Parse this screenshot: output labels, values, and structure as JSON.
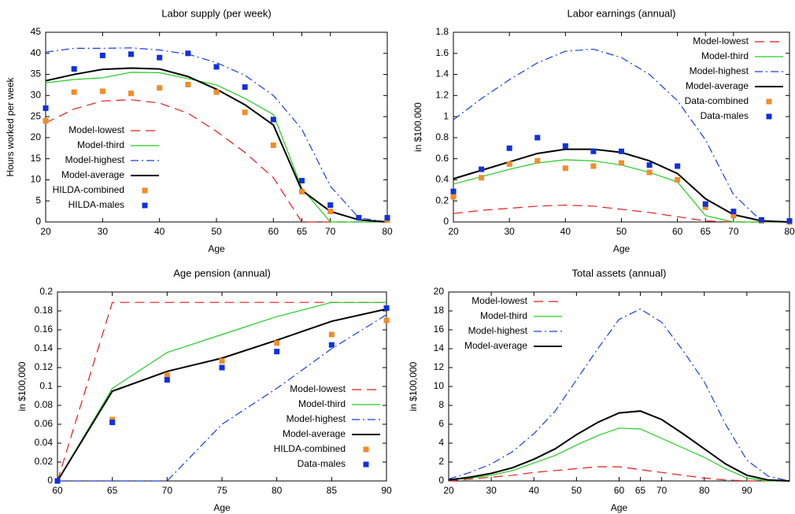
{
  "chart_data": [
    {
      "type": "line",
      "title": "Labor supply (per week)",
      "xlabel": "Age",
      "ylabel": "Hours worked per week",
      "x": [
        20,
        25,
        30,
        35,
        40,
        45,
        50,
        55,
        60,
        65,
        70,
        75,
        80
      ],
      "xlim": [
        20,
        80
      ],
      "xticks": [
        20,
        30,
        40,
        50,
        60,
        65,
        70,
        80
      ],
      "ylim": [
        0,
        45
      ],
      "yticks": [
        0,
        5,
        10,
        15,
        20,
        25,
        30,
        35,
        40,
        45
      ],
      "legend": "lower left",
      "series": [
        {
          "name": "Model-lowest",
          "color": "#e41a1c",
          "dash": "long",
          "kind": "line",
          "values": [
            23.5,
            26.8,
            28.7,
            29,
            28.2,
            25.8,
            21.5,
            16.5,
            10.5,
            0,
            0,
            0,
            0
          ]
        },
        {
          "name": "Model-third",
          "color": "#22cc22",
          "dash": "solid",
          "kind": "line",
          "values": [
            33,
            33.8,
            34.2,
            35.5,
            35.4,
            34,
            32.5,
            29.3,
            25.5,
            8,
            0,
            0,
            0
          ]
        },
        {
          "name": "Model-highest",
          "color": "#1a3ee0",
          "dash": "dot-dash",
          "kind": "line",
          "values": [
            40.3,
            41.2,
            41.2,
            41.3,
            40.8,
            39.8,
            37.8,
            34.8,
            30,
            22,
            8.5,
            1,
            0
          ]
        },
        {
          "name": "Model-average",
          "color": "#000000",
          "dash": "solid",
          "kind": "line",
          "bold": true,
          "values": [
            33.5,
            35,
            36.2,
            36.5,
            36.3,
            34.5,
            31.5,
            27.8,
            23,
            7.5,
            2.5,
            0.5,
            0
          ]
        },
        {
          "name": "HILDA-combined",
          "color": "#f28c28",
          "kind": "points",
          "values": [
            24,
            30.8,
            31,
            30.5,
            31.8,
            32.6,
            30.8,
            26,
            18.2,
            7.2,
            2.5,
            1,
            0.5
          ]
        },
        {
          "name": "HILDA-males",
          "color": "#1030e0",
          "kind": "points",
          "values": [
            27,
            36.3,
            39.5,
            39.8,
            39,
            40,
            36.8,
            32,
            24.3,
            9.8,
            4,
            1,
            1
          ]
        }
      ]
    },
    {
      "type": "line",
      "title": "Labor earnings (annual)",
      "xlabel": "Age",
      "ylabel": "in $100,000",
      "x": [
        20,
        25,
        30,
        35,
        40,
        45,
        50,
        55,
        60,
        65,
        70,
        75,
        80
      ],
      "xlim": [
        20,
        80
      ],
      "xticks": [
        20,
        30,
        40,
        50,
        60,
        65,
        70,
        80
      ],
      "ylim": [
        0,
        1.8
      ],
      "yticks": [
        0,
        0.2,
        0.4,
        0.6,
        0.8,
        1,
        1.2,
        1.4,
        1.6,
        1.8
      ],
      "legend": "upper right",
      "series": [
        {
          "name": "Model-lowest",
          "color": "#e41a1c",
          "dash": "long",
          "kind": "line",
          "values": [
            0.08,
            0.11,
            0.13,
            0.15,
            0.16,
            0.15,
            0.12,
            0.09,
            0.05,
            0.01,
            0,
            0,
            0
          ]
        },
        {
          "name": "Model-third",
          "color": "#22cc22",
          "dash": "solid",
          "kind": "line",
          "values": [
            0.36,
            0.43,
            0.5,
            0.56,
            0.59,
            0.58,
            0.54,
            0.47,
            0.38,
            0.06,
            0,
            0,
            0
          ]
        },
        {
          "name": "Model-highest",
          "color": "#1a3ee0",
          "dash": "dot-dash",
          "kind": "line",
          "values": [
            0.97,
            1.17,
            1.35,
            1.51,
            1.62,
            1.64,
            1.56,
            1.4,
            1.15,
            0.78,
            0.26,
            0.01,
            0
          ]
        },
        {
          "name": "Model-average",
          "color": "#000000",
          "dash": "solid",
          "kind": "line",
          "bold": true,
          "values": [
            0.41,
            0.49,
            0.57,
            0.65,
            0.69,
            0.69,
            0.66,
            0.58,
            0.46,
            0.22,
            0.07,
            0.01,
            0
          ]
        },
        {
          "name": "Data-combined",
          "color": "#f28c28",
          "kind": "points",
          "values": [
            0.24,
            0.42,
            0.55,
            0.58,
            0.51,
            0.53,
            0.56,
            0.47,
            0.4,
            0.14,
            0.06,
            0.01,
            0
          ]
        },
        {
          "name": "Data-males",
          "color": "#1030e0",
          "kind": "points",
          "values": [
            0.29,
            0.5,
            0.7,
            0.8,
            0.72,
            0.67,
            0.67,
            0.54,
            0.53,
            0.17,
            0.1,
            0.02,
            0.01
          ]
        }
      ]
    },
    {
      "type": "line",
      "title": "Age pension (annual)",
      "xlabel": "Age",
      "ylabel": "in $100,000",
      "x": [
        60,
        65,
        70,
        75,
        80,
        85,
        90
      ],
      "xlim": [
        60,
        90
      ],
      "xticks": [
        60,
        65,
        70,
        75,
        80,
        85,
        90
      ],
      "ylim": [
        0,
        0.2
      ],
      "yticks": [
        0,
        0.02,
        0.04,
        0.06,
        0.08,
        0.1,
        0.12,
        0.14,
        0.16,
        0.18,
        0.2
      ],
      "legend": "lower right",
      "series": [
        {
          "name": "Model-lowest",
          "color": "#e41a1c",
          "dash": "long",
          "kind": "line",
          "values": [
            0,
            0.189,
            0.189,
            0.189,
            0.189,
            0.189,
            0.189
          ]
        },
        {
          "name": "Model-third",
          "color": "#22cc22",
          "dash": "solid",
          "kind": "line",
          "values": [
            0,
            0.098,
            0.136,
            0.155,
            0.174,
            0.189,
            0.189
          ]
        },
        {
          "name": "Model-highest",
          "color": "#1a3ee0",
          "dash": "dot-dash",
          "kind": "line",
          "values": [
            0,
            0,
            0,
            0.06,
            0.098,
            0.14,
            0.176
          ]
        },
        {
          "name": "Model-average",
          "color": "#000000",
          "dash": "solid",
          "kind": "line",
          "bold": true,
          "values": [
            0,
            0.095,
            0.116,
            0.13,
            0.149,
            0.169,
            0.182
          ]
        },
        {
          "name": "HILDA-combined",
          "color": "#f28c28",
          "kind": "points",
          "values": [
            0,
            0.065,
            0.112,
            0.127,
            0.146,
            0.155,
            0.17
          ]
        },
        {
          "name": "Data-males",
          "color": "#1030e0",
          "kind": "points",
          "values": [
            0,
            0.062,
            0.107,
            0.12,
            0.137,
            0.144,
            0.183
          ]
        }
      ]
    },
    {
      "type": "line",
      "title": "Total assets (annual)",
      "xlabel": "Age",
      "ylabel": "in $100,000",
      "x": [
        20,
        25,
        30,
        35,
        40,
        45,
        50,
        55,
        60,
        65,
        70,
        75,
        80,
        85,
        90,
        95,
        100
      ],
      "xlim": [
        20,
        100
      ],
      "xticks": [
        20,
        30,
        40,
        50,
        60,
        65,
        70,
        80,
        90
      ],
      "ylim": [
        0,
        20
      ],
      "yticks": [
        0,
        2,
        4,
        6,
        8,
        10,
        12,
        14,
        16,
        18,
        20
      ],
      "legend": "upper left",
      "series": [
        {
          "name": "Model-lowest",
          "color": "#e41a1c",
          "dash": "long",
          "kind": "line",
          "values": [
            0,
            0.2,
            0.4,
            0.6,
            0.9,
            1.1,
            1.3,
            1.5,
            1.5,
            1.2,
            0.9,
            0.6,
            0.3,
            0.1,
            0,
            0,
            0
          ]
        },
        {
          "name": "Model-third",
          "color": "#22cc22",
          "dash": "solid",
          "kind": "line",
          "values": [
            0.1,
            0.3,
            0.6,
            1.1,
            1.9,
            2.7,
            3.8,
            4.8,
            5.6,
            5.5,
            4.5,
            3.5,
            2.5,
            1.3,
            0.3,
            0,
            0
          ]
        },
        {
          "name": "Model-highest",
          "color": "#1a3ee0",
          "dash": "dot-dash",
          "kind": "line",
          "values": [
            0.2,
            0.9,
            1.8,
            3.1,
            5,
            7.4,
            10.7,
            14,
            17.1,
            18.2,
            16.8,
            13.8,
            10.5,
            6,
            2.2,
            0.5,
            0
          ]
        },
        {
          "name": "Model-average",
          "color": "#000000",
          "dash": "solid",
          "kind": "line",
          "bold": true,
          "values": [
            0.1,
            0.4,
            0.8,
            1.4,
            2.3,
            3.4,
            4.9,
            6.2,
            7.2,
            7.4,
            6.5,
            5,
            3.4,
            1.8,
            0.6,
            0.1,
            0
          ]
        }
      ]
    }
  ]
}
